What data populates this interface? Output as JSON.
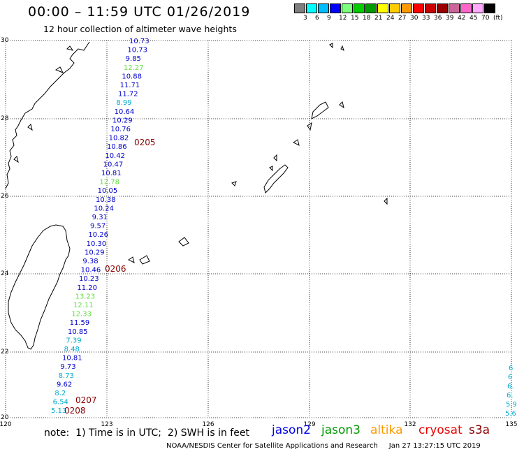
{
  "header": {
    "title": "00:00 – 11:59 UTC 01/26/2019",
    "subtitle": "12 hour collection of altimeter wave heights"
  },
  "legend": {
    "colors": [
      "#7f7f7f",
      "#00ffff",
      "#00bfff",
      "#0000ff",
      "#7fff7f",
      "#00cc00",
      "#009900",
      "#ffff00",
      "#ffcc00",
      "#ff9900",
      "#ff0000",
      "#cc0000",
      "#990000",
      "#cc6699",
      "#ff66cc",
      "#ffaaff",
      "#000000"
    ],
    "labels": [
      "3",
      "6",
      "9",
      "12",
      "15",
      "18",
      "21",
      "24",
      "27",
      "30",
      "33",
      "36",
      "39",
      "42",
      "45",
      "70",
      "(ft)"
    ]
  },
  "axes": {
    "lat_labels": [
      "30",
      "28",
      "26",
      "24",
      "22",
      "20"
    ],
    "lon_labels": [
      "120",
      "123",
      "126",
      "129",
      "132",
      "135"
    ]
  },
  "track_main": [
    {
      "v": "10.73",
      "c": "#0000cc"
    },
    {
      "v": "10.73",
      "c": "#0000cc"
    },
    {
      "v": "9.85",
      "c": "#0000cc"
    },
    {
      "v": "12.27",
      "c": "#66dd44"
    },
    {
      "v": "10.88",
      "c": "#0000cc"
    },
    {
      "v": "11.71",
      "c": "#0000cc"
    },
    {
      "v": "11.72",
      "c": "#0000cc"
    },
    {
      "v": "8.99",
      "c": "#00aacc"
    },
    {
      "v": "10.64",
      "c": "#0000cc"
    },
    {
      "v": "10.29",
      "c": "#0000cc"
    },
    {
      "v": "10.76",
      "c": "#0000cc"
    },
    {
      "v": "10.82",
      "c": "#0000cc"
    },
    {
      "v": "10.86",
      "c": "#0000cc"
    },
    {
      "v": "10.42",
      "c": "#0000cc"
    },
    {
      "v": "10.47",
      "c": "#0000cc"
    },
    {
      "v": "10.81",
      "c": "#0000cc"
    },
    {
      "v": "12.78",
      "c": "#66dd44"
    },
    {
      "v": "10.05",
      "c": "#0000cc"
    },
    {
      "v": "10.38",
      "c": "#0000cc"
    },
    {
      "v": "10.24",
      "c": "#0000cc"
    },
    {
      "v": "9.31",
      "c": "#0000cc"
    },
    {
      "v": "9.57",
      "c": "#0000cc"
    },
    {
      "v": "10.26",
      "c": "#0000cc"
    },
    {
      "v": "10.30",
      "c": "#0000cc"
    },
    {
      "v": "10.29",
      "c": "#0000cc"
    },
    {
      "v": "9.38",
      "c": "#0000cc"
    },
    {
      "v": "10.46",
      "c": "#0000cc"
    },
    {
      "v": "10.23",
      "c": "#0000cc"
    },
    {
      "v": "11.20",
      "c": "#0000cc"
    },
    {
      "v": "13.23",
      "c": "#66dd44"
    },
    {
      "v": "12.11",
      "c": "#66dd44"
    },
    {
      "v": "12.33",
      "c": "#66dd44"
    },
    {
      "v": "11.59",
      "c": "#0000cc"
    },
    {
      "v": "10.85",
      "c": "#0000cc"
    },
    {
      "v": "7.39",
      "c": "#00aacc"
    },
    {
      "v": "8.48",
      "c": "#00aacc"
    },
    {
      "v": "10.81",
      "c": "#0000cc"
    },
    {
      "v": "9.73",
      "c": "#0000cc"
    },
    {
      "v": "8.73",
      "c": "#00aacc"
    },
    {
      "v": "9.62",
      "c": "#0000cc"
    },
    {
      "v": "8.2",
      "c": "#00aacc"
    },
    {
      "v": "6.54",
      "c": "#00aacc"
    },
    {
      "v": "5.13",
      "c": "#00aacc"
    }
  ],
  "time_labels": [
    "0205",
    "0206",
    "0207",
    "0208"
  ],
  "edge_track": [
    "6",
    "6",
    "6.",
    "6.",
    "5.9",
    "5.6"
  ],
  "note": "note:  1) Time is in UTC;  2) SWH is in feet",
  "satellites": [
    {
      "name": "jason2",
      "color": "#0000ee"
    },
    {
      "name": "jason3",
      "color": "#009900"
    },
    {
      "name": "altika",
      "color": "#ff9900"
    },
    {
      "name": "cryosat",
      "color": "#ee0000"
    },
    {
      "name": "s3a",
      "color": "#880000"
    }
  ],
  "credit": "NOAA/NESDIS Center for Satellite Applications and Research     Jan 27 13:27:15 UTC 2019"
}
